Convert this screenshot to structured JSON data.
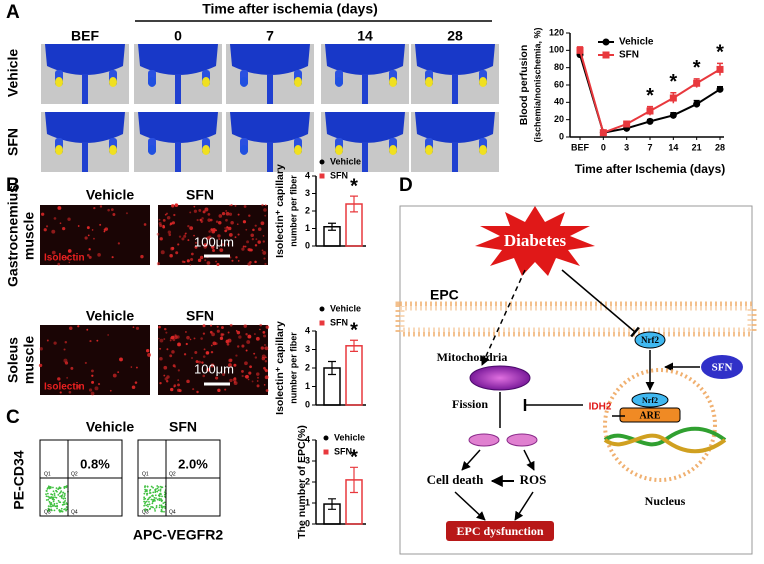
{
  "panel_labels": [
    "A",
    "B",
    "C",
    "D"
  ],
  "panel_a": {
    "title": "Time after ischemia (days)",
    "columns": [
      "BEF",
      "0",
      "7",
      "14",
      "28"
    ],
    "rows": [
      "Vehicle",
      "SFN"
    ]
  },
  "panel_b": {
    "columns": [
      "Vehicle",
      "SFN"
    ],
    "rows": [
      [
        "Gastrocnemius",
        "muscle"
      ],
      [
        "Soleus",
        "muscle"
      ]
    ],
    "stain": "Isolectin",
    "scale": "100μm"
  },
  "panel_c": {
    "columns": [
      "Vehicle",
      "SFN"
    ],
    "percentages": [
      "0.8%",
      "2.0%"
    ],
    "quadrants": [
      "Q1",
      "Q2",
      "Q3",
      "Q4"
    ],
    "y_label": "PE-CD34",
    "x_label": "APC-VEGFR2"
  },
  "panel_d": {
    "diabetes": "Diabetes",
    "cell": "EPC",
    "mitochondria": "Mitochondria",
    "nrf2": "Nrf2",
    "sfn": "SFN",
    "fission": "Fission",
    "idh2": "IDH2",
    "are": "ARE",
    "nucleus": "Nucleus",
    "cell_death": "Cell death",
    "ros": "ROS",
    "outcome": "EPC dysfunction"
  },
  "chart_data": [
    {
      "type": "line",
      "y_label": [
        "Blood perfusion",
        "(ischemia/nonischemia, %)"
      ],
      "x_label": "Time after Ischemia (days)",
      "categories": [
        "BEF",
        "0",
        "3",
        "7",
        "14",
        "21",
        "28"
      ],
      "ylim": [
        0,
        120
      ],
      "yticks": [
        0,
        20,
        40,
        60,
        80,
        100,
        120
      ],
      "series": [
        {
          "name": "Vehicle",
          "color": "#000000",
          "values": [
            95,
            5,
            10,
            18,
            25,
            38,
            55
          ],
          "errors": [
            3,
            1,
            2,
            2,
            3,
            4,
            3
          ]
        },
        {
          "name": "SFN",
          "color": "#e8383d",
          "values": [
            100,
            5,
            15,
            30,
            45,
            62,
            78
          ],
          "errors": [
            4,
            1,
            3,
            5,
            6,
            5,
            7
          ]
        }
      ],
      "significance_labels": [
        null,
        null,
        null,
        "*",
        "*",
        "*",
        "*"
      ]
    },
    {
      "type": "bar",
      "y_label": [
        "Isolectin⁺ capillary",
        "number per fiber"
      ],
      "ylim": [
        0,
        4
      ],
      "yticks": [
        0,
        1,
        2,
        3,
        4
      ],
      "series": [
        {
          "name": "Vehicle",
          "color": "#000000",
          "values": [
            1.1
          ],
          "errors": [
            0.2
          ]
        },
        {
          "name": "SFN",
          "color": "#e8383d",
          "values": [
            2.4
          ],
          "errors": [
            0.45
          ]
        }
      ],
      "significance_labels": [
        null,
        "*"
      ]
    },
    {
      "type": "bar",
      "y_label": [
        "Isolectin⁺ capillary",
        "number per fiber"
      ],
      "ylim": [
        0,
        4
      ],
      "yticks": [
        0,
        1,
        2,
        3,
        4
      ],
      "series": [
        {
          "name": "Vehicle",
          "color": "#000000",
          "values": [
            2.0
          ],
          "errors": [
            0.35
          ]
        },
        {
          "name": "SFN",
          "color": "#e8383d",
          "values": [
            3.2
          ],
          "errors": [
            0.3
          ]
        }
      ],
      "significance_labels": [
        null,
        "*"
      ]
    },
    {
      "type": "bar",
      "y_label": [
        "The number of EPC(%)"
      ],
      "ylim": [
        0,
        4
      ],
      "yticks": [
        0,
        1,
        2,
        3,
        4
      ],
      "series": [
        {
          "name": "Vehicle",
          "color": "#000000",
          "values": [
            0.95
          ],
          "errors": [
            0.25
          ]
        },
        {
          "name": "SFN",
          "color": "#e8383d",
          "values": [
            2.1
          ],
          "errors": [
            0.6
          ]
        }
      ],
      "significance_labels": [
        null,
        "*"
      ]
    }
  ]
}
